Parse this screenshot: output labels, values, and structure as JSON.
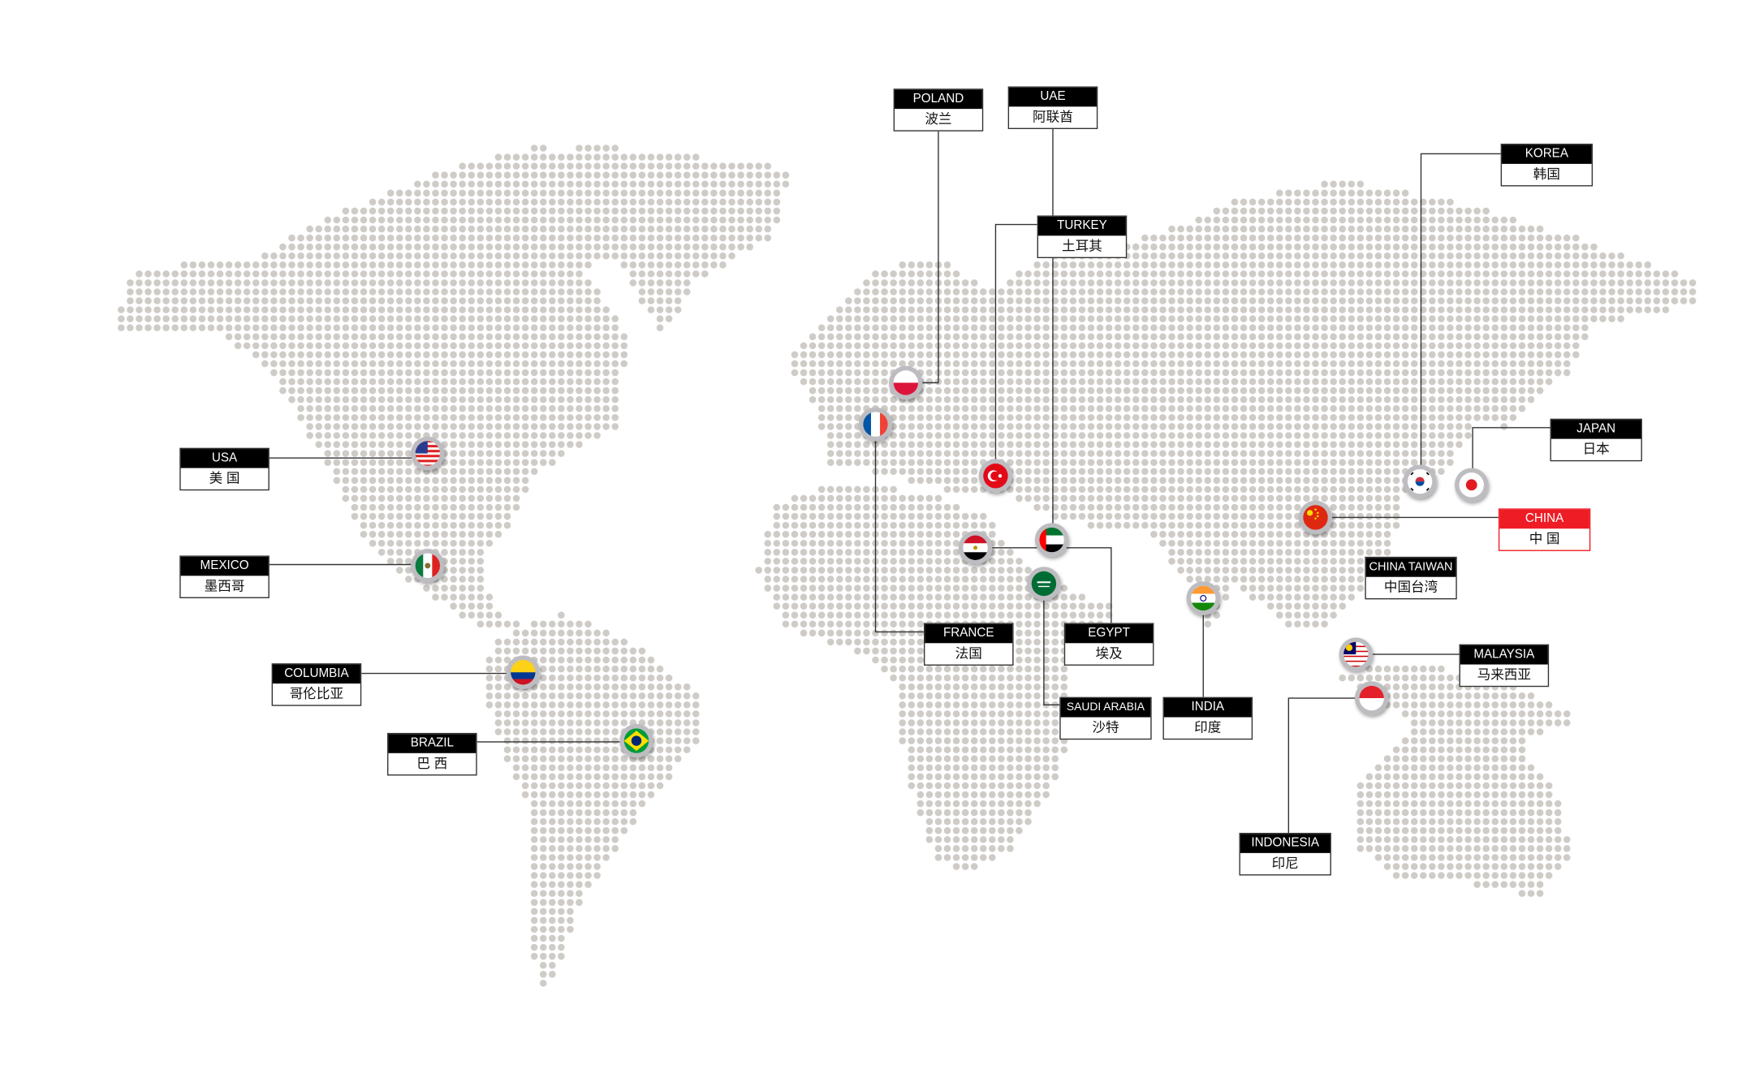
{
  "colors": {
    "dot": "#cfccc8",
    "line": "#333333",
    "label_header": "#000000",
    "highlight": "#ee1c25",
    "pin_ring": "#bdbdc1"
  },
  "labels": {
    "usa": {
      "en": "USA",
      "zh": "美 国",
      "flag": "usa-flag"
    },
    "mexico": {
      "en": "MEXICO",
      "zh": "墨西哥",
      "flag": "mexico-flag"
    },
    "columbia": {
      "en": "COLUMBIA",
      "zh": "哥伦比亚",
      "flag": "colombia-flag"
    },
    "brazil": {
      "en": "BRAZIL",
      "zh": "巴 西",
      "flag": "brazil-flag"
    },
    "poland": {
      "en": "POLAND",
      "zh": "波兰",
      "flag": "poland-flag"
    },
    "uae": {
      "en": "UAE",
      "zh": "阿联酋",
      "flag": "uae-flag"
    },
    "turkey": {
      "en": "TURKEY",
      "zh": "土耳其",
      "flag": "turkey-flag"
    },
    "france": {
      "en": "FRANCE",
      "zh": "法国",
      "flag": "france-flag"
    },
    "egypt": {
      "en": "EGYPT",
      "zh": "埃及",
      "flag": "egypt-flag"
    },
    "saudi": {
      "en": "SAUDI ARABIA",
      "zh": "沙特",
      "flag": "saudi-flag"
    },
    "india": {
      "en": "INDIA",
      "zh": "印度",
      "flag": "india-flag"
    },
    "korea": {
      "en": "KOREA",
      "zh": "韩国",
      "flag": "korea-flag"
    },
    "japan": {
      "en": "JAPAN",
      "zh": "日本",
      "flag": "japan-flag"
    },
    "china": {
      "en": "CHINA",
      "zh": "中 国",
      "flag": "china-flag",
      "highlighted": true
    },
    "taiwan": {
      "en": "CHINA TAIWAN",
      "zh": "中国台湾"
    },
    "malaysia": {
      "en": "MALAYSIA",
      "zh": "马来西亚",
      "flag": "malaysia-flag"
    },
    "indonesia": {
      "en": "INDONESIA",
      "zh": "印尼",
      "flag": "indonesia-flag"
    }
  }
}
